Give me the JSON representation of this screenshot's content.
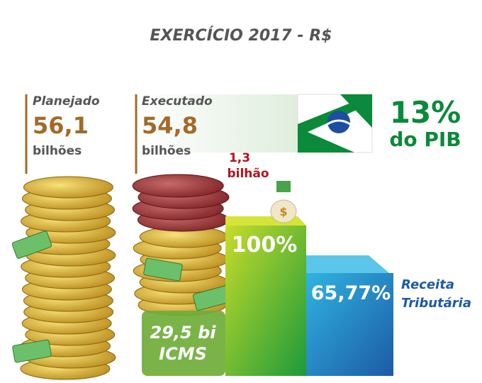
{
  "header": {
    "title": "EXERCÍCIO 2017 - R$"
  },
  "planned": {
    "label": "Planejado",
    "value": "56,1",
    "unit": "bilhões"
  },
  "executed": {
    "label": "Executado",
    "value": "54,8",
    "unit": "bilhões"
  },
  "pib": {
    "value": "13%",
    "label": "do PIB"
  },
  "difference": {
    "value": "1,3",
    "unit": "bilhão"
  },
  "bars": [
    {
      "label": "100%"
    },
    {
      "label": "65,77%"
    }
  ],
  "revenue": {
    "line1": "Receita",
    "line2": "Tributária"
  },
  "icms": {
    "value": "29,5 bi",
    "label": "ICMS"
  }
}
